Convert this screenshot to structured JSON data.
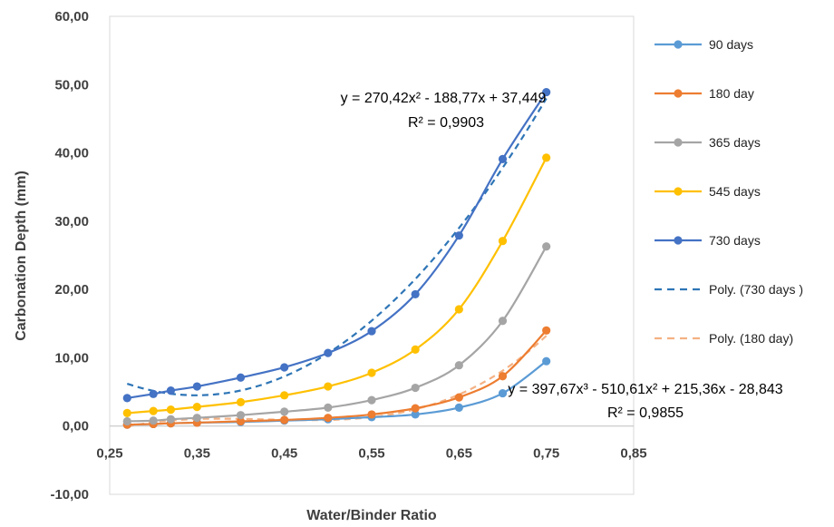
{
  "chart_data": {
    "type": "line",
    "title": "",
    "xlabel": "Water/Binder Ratio",
    "ylabel": "Carbonation Depth  (mm)",
    "xlim": [
      0.25,
      0.85
    ],
    "ylim": [
      -10,
      60
    ],
    "x_ticks": [
      "0,25",
      "0,35",
      "0,45",
      "0,55",
      "0,65",
      "0,75",
      "0,85"
    ],
    "y_ticks": [
      "-10,00",
      "0,00",
      "10,00",
      "20,00",
      "30,00",
      "40,00",
      "50,00",
      "60,00"
    ],
    "grid": "horizontal gridlines off; plot area border",
    "legend_position": "right",
    "x": [
      0.27,
      0.3,
      0.32,
      0.35,
      0.4,
      0.45,
      0.5,
      0.55,
      0.6,
      0.65,
      0.7,
      0.75
    ],
    "series": [
      {
        "name": "90 days",
        "color": "#5B9BD5",
        "values": [
          0.2,
          0.3,
          0.4,
          0.5,
          0.6,
          0.8,
          1.0,
          1.3,
          1.7,
          2.7,
          4.8,
          9.5
        ]
      },
      {
        "name": "180 day",
        "color": "#ED7D31",
        "values": [
          0.2,
          0.3,
          0.4,
          0.5,
          0.7,
          0.9,
          1.2,
          1.7,
          2.6,
          4.2,
          7.3,
          14.0
        ]
      },
      {
        "name": "365 days",
        "color": "#A5A5A5",
        "values": [
          0.7,
          0.8,
          1.0,
          1.2,
          1.6,
          2.1,
          2.7,
          3.8,
          5.6,
          8.9,
          15.4,
          26.3
        ]
      },
      {
        "name": "545 days",
        "color": "#FFC000",
        "values": [
          1.9,
          2.2,
          2.4,
          2.8,
          3.5,
          4.5,
          5.8,
          7.8,
          11.2,
          17.1,
          27.1,
          39.3
        ]
      },
      {
        "name": "730 days",
        "color": "#4472C4",
        "values": [
          4.1,
          4.7,
          5.2,
          5.8,
          7.1,
          8.6,
          10.7,
          13.9,
          19.3,
          27.9,
          39.1,
          48.9
        ]
      }
    ],
    "trendlines": [
      {
        "name": "Poly. (730 days )",
        "color": "#2E75B6",
        "coefficients": [
          37.449,
          -188.77,
          270.42
        ],
        "equation": "y = 270,42x² - 188,77x + 37,449",
        "r2_label": "R² = 0,9903"
      },
      {
        "name": "Poly. (180 day)",
        "color": "#F4B183",
        "coefficients": [
          -28.843,
          215.36,
          -510.61,
          397.67
        ],
        "equation": "y = 397,67x³ - 510,61x² + 215,36x - 28,843",
        "r2_label": "R² = 0,9855"
      }
    ]
  }
}
